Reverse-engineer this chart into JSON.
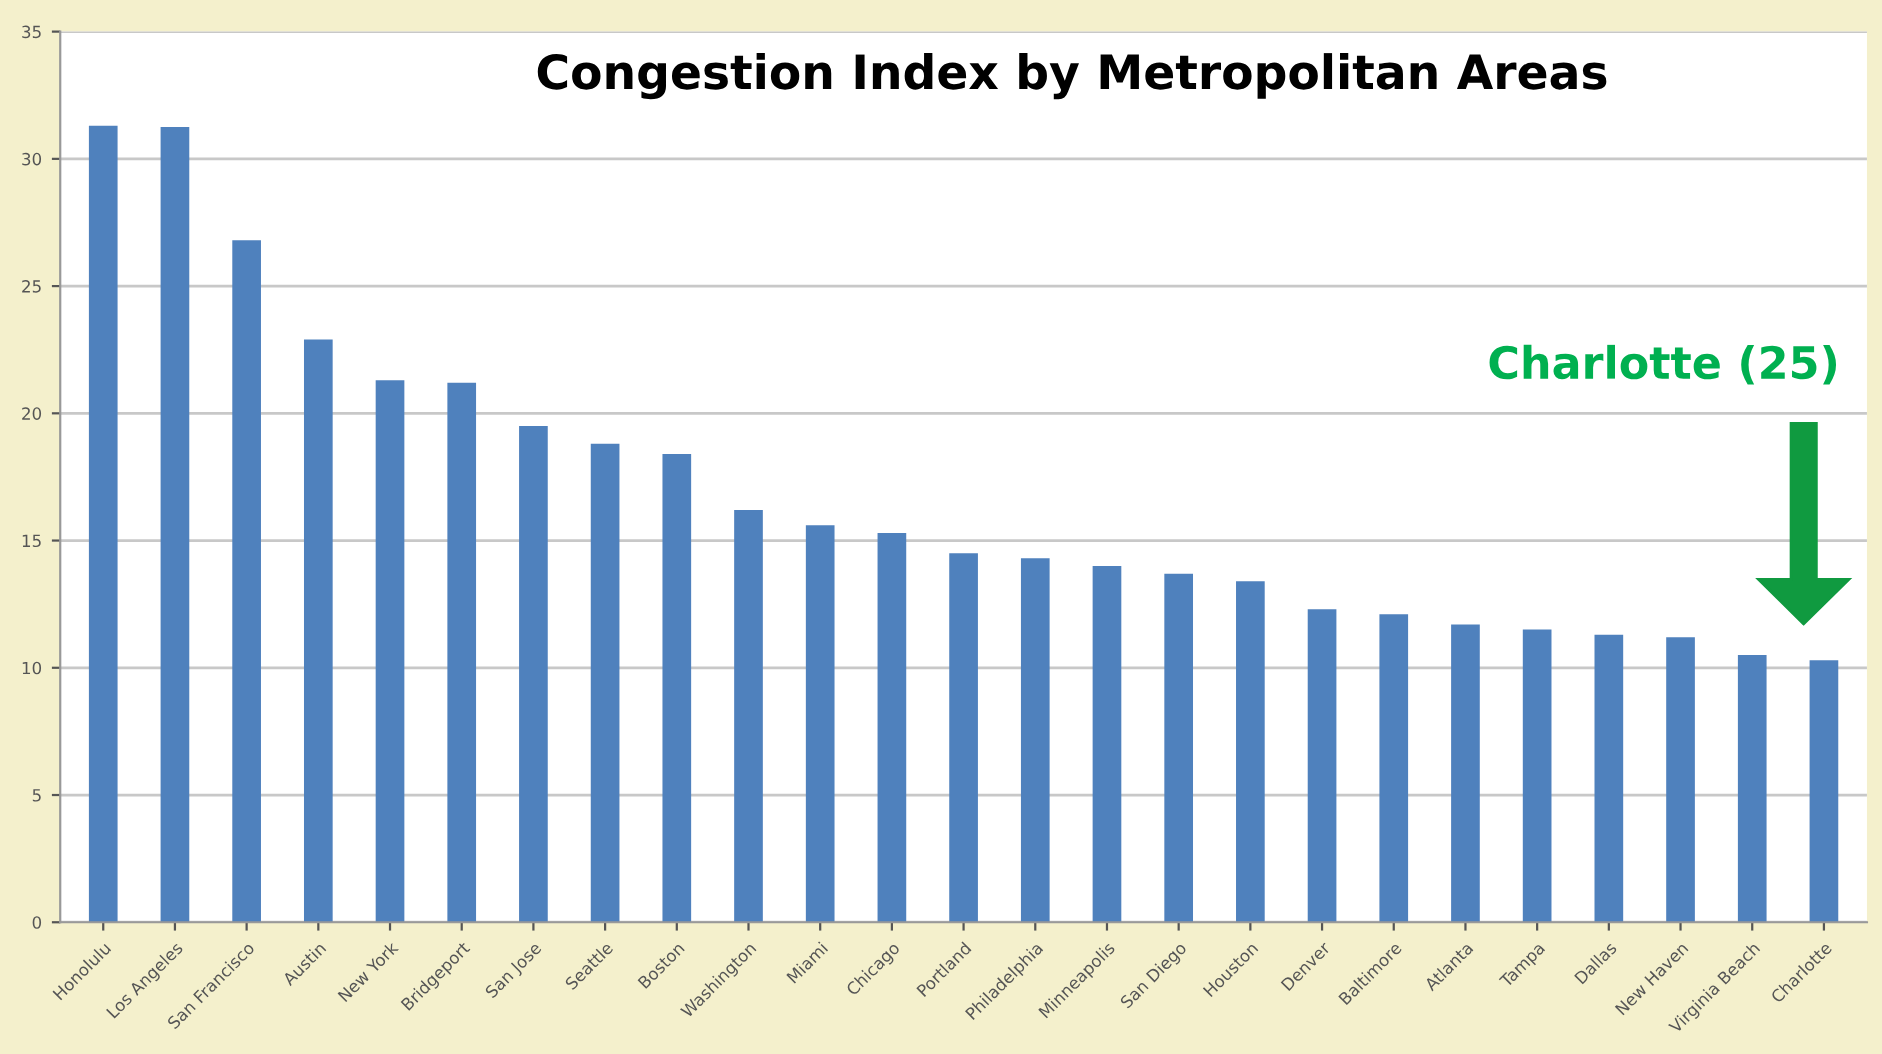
{
  "chart_data": {
    "type": "bar",
    "title": "Congestion Index by Metropolitan Areas",
    "categories": [
      "Honolulu",
      "Los Angeles",
      "San Francisco",
      "Austin",
      "New York",
      "Bridgeport",
      "San Jose",
      "Seattle",
      "Boston",
      "Washington",
      "Miami",
      "Chicago",
      "Portland",
      "Philadelphia",
      "Minneapolis",
      "San Diego",
      "Houston",
      "Denver",
      "Baltimore",
      "Atlanta",
      "Tampa",
      "Dallas",
      "New Haven",
      "Virginia Beach",
      "Charlotte"
    ],
    "values": [
      31.3,
      31.25,
      26.8,
      22.9,
      21.3,
      21.2,
      19.5,
      18.8,
      18.4,
      16.2,
      15.6,
      15.3,
      14.5,
      14.3,
      14.0,
      13.7,
      13.4,
      12.3,
      12.1,
      11.7,
      11.5,
      11.3,
      11.2,
      10.5,
      10.3
    ],
    "color": "#4f81bd",
    "ylim": [
      0,
      35
    ],
    "yticks": [
      0,
      5,
      10,
      15,
      20,
      25,
      30,
      35
    ],
    "grid": "y",
    "annotations": [
      "Charlotte (25)"
    ]
  }
}
